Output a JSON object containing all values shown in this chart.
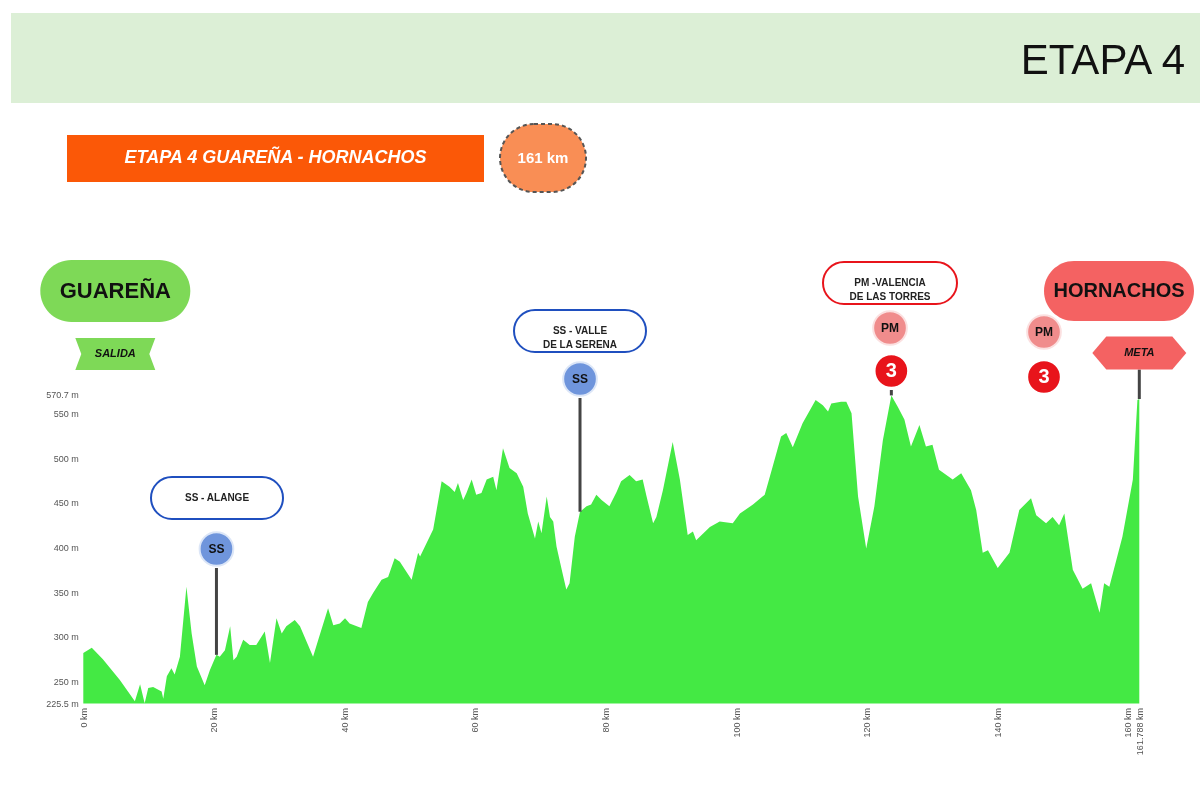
{
  "chart_data": {
    "type": "area",
    "title": "ETAPA 4",
    "subtitle": "ETAPA 4 GUAREÑA - HORNACHOS",
    "x": [
      0,
      1.3,
      3,
      5.6,
      7.9,
      8.7,
      9.4,
      9.95,
      10.7,
      12,
      12.25,
      12.8,
      13.5,
      14,
      14.8,
      15.8,
      16.6,
      17.4,
      18.6,
      19.4,
      20.4,
      20.9,
      21.7,
      22.5,
      23,
      23.5,
      24.5,
      25.5,
      26.5,
      27.8,
      28.6,
      29.6,
      30.4,
      31.1,
      32.4,
      33.2,
      35.2,
      36,
      37.5,
      38.3,
      39.3,
      40.1,
      40.8,
      42.6,
      43.6,
      44.4,
      45.7,
      46.7,
      47.7,
      48.5,
      50.3,
      51.3,
      51.6,
      53.6,
      54.9,
      56.1,
      56.9,
      57.4,
      58.2,
      58.7,
      59.5,
      60.2,
      61,
      61.8,
      62.8,
      63.3,
      64.3,
      65.3,
      66.4,
      67.4,
      68.1,
      69.2,
      69.7,
      70.2,
      71,
      71.5,
      72,
      72.5,
      73.3,
      74,
      74.5,
      75.3,
      76.1,
      77.1,
      77.8,
      78.6,
      79.4,
      80.6,
      81.7,
      82.4,
      83.7,
      84.7,
      85.7,
      86.3,
      87.3,
      87.8,
      88.8,
      90.3,
      91.4,
      92.6,
      93.4,
      93.9,
      96,
      97.5,
      99.5,
      100.6,
      102.6,
      104.4,
      105.6,
      106.9,
      107.7,
      108.7,
      110.2,
      112.2,
      113.3,
      114.1,
      114.6,
      116.1,
      116.9,
      117.7,
      118.7,
      119.95,
      121.2,
      122.5,
      123.8,
      124.8,
      125.8,
      126.8,
      128.1,
      129.1,
      130.1,
      131.1,
      133.2,
      134.5,
      136,
      136.8,
      137.8,
      138.6,
      140.1,
      141.9,
      143.4,
      145.2,
      146,
      147.5,
      148.5,
      149.5,
      150.3,
      151.6,
      153.1,
      154.4,
      155.7,
      156.4,
      157.2,
      159.2,
      160.8,
      161.5,
      161.788
    ],
    "values": [
      282,
      288,
      275,
      252,
      228,
      247,
      226,
      243,
      244,
      239,
      231,
      256,
      265,
      258,
      278,
      356,
      304,
      267,
      246,
      263,
      280,
      278,
      285,
      312,
      274,
      278,
      297,
      291,
      291,
      306,
      271,
      321,
      304,
      312,
      319,
      312,
      278,
      297,
      332,
      313,
      315,
      321,
      315,
      310,
      339,
      349,
      364,
      367,
      388,
      384,
      364,
      394,
      390,
      420,
      474,
      468,
      462,
      472,
      453,
      461,
      476,
      459,
      461,
      476,
      479,
      464,
      511,
      489,
      483,
      468,
      438,
      410,
      429,
      416,
      457,
      434,
      429,
      401,
      375,
      353,
      360,
      412,
      440,
      446,
      448,
      459,
      453,
      446,
      462,
      474,
      481,
      474,
      476,
      457,
      427,
      434,
      464,
      518,
      476,
      414,
      418,
      408,
      423,
      429,
      427,
      438,
      448,
      459,
      490,
      524,
      528,
      512,
      539,
      565,
      559,
      552,
      561,
      563,
      563,
      550,
      457,
      399,
      446,
      520,
      570,
      557,
      543,
      513,
      537,
      513,
      515,
      487,
      476,
      483,
      464,
      442,
      394,
      397,
      377,
      394,
      442,
      455,
      436,
      427,
      434,
      425,
      438,
      375,
      354,
      360,
      327,
      360,
      356,
      412,
      476,
      565,
      566
    ],
    "color": "#44e944",
    "xlim": [
      0,
      161.788
    ],
    "ylim": [
      225.5,
      570.7
    ],
    "xticks": [
      {
        "value": 0,
        "label": "0 km"
      },
      {
        "value": 20,
        "label": "20 km"
      },
      {
        "value": 40,
        "label": "40 km"
      },
      {
        "value": 60,
        "label": "60 km"
      },
      {
        "value": 80,
        "label": "80 km"
      },
      {
        "value": 100,
        "label": "100 km"
      },
      {
        "value": 120,
        "label": "120 km"
      },
      {
        "value": 140,
        "label": "140 km"
      },
      {
        "value": 160,
        "label": "160 km"
      },
      {
        "value": 161.788,
        "label": "161.788 km"
      }
    ],
    "yticks": [
      {
        "value": 225.5,
        "label": "225.5 m"
      },
      {
        "value": 250,
        "label": "250 m"
      },
      {
        "value": 300,
        "label": "300 m"
      },
      {
        "value": 350,
        "label": "350 m"
      },
      {
        "value": 400,
        "label": "400 m"
      },
      {
        "value": 450,
        "label": "450 m"
      },
      {
        "value": 500,
        "label": "500 m"
      },
      {
        "value": 550,
        "label": "550 m"
      },
      {
        "value": 570.7,
        "label": "570.7 m"
      }
    ],
    "annotations": [
      "161 km",
      "GUAREÑA",
      "SALIDA",
      "SS - ALANGE",
      {
        "text": "SS",
        "x": 20.4,
        "y": 280
      },
      "SS - VALLE DE LA SERENA",
      {
        "text": "SS",
        "x": 76.1,
        "y": 440
      },
      "PM -VALENCIA DE LAS TORRES",
      "PM",
      {
        "text": "3",
        "x": 123.8,
        "y": 570
      },
      "HORNACHOS",
      "PM",
      "3",
      {
        "text": "META",
        "x": 161.788,
        "y": 566
      }
    ]
  }
}
